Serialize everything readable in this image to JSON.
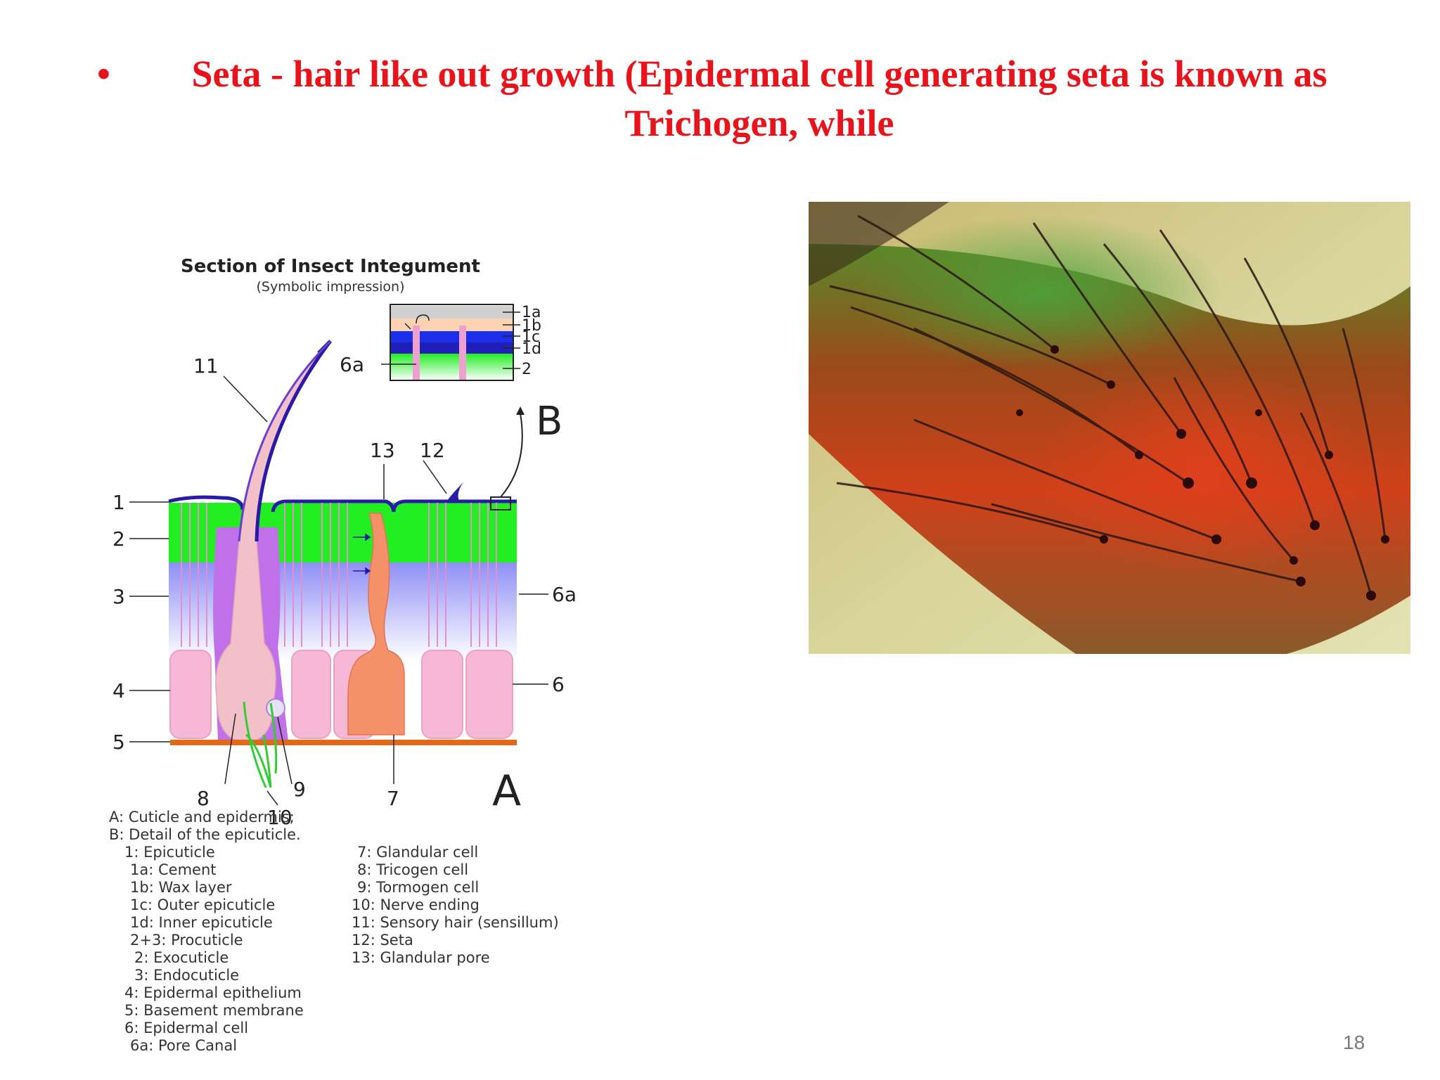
{
  "slide": {
    "bullet": "•",
    "title": "Seta - hair like out growth (Epidermal cell generating seta is known as Trichogen, while",
    "page_number": "18"
  },
  "diagram": {
    "title": "Section of Insect Integument",
    "subtitle": "(Symbolic impression)",
    "panel_a": "A",
    "panel_b": "B",
    "labels": {
      "l1": "1",
      "l2": "2",
      "l3": "3",
      "l4": "4",
      "l5": "5",
      "l6": "6",
      "l6a_right": "6a",
      "l6a_inset": "6a",
      "l7": "7",
      "l8": "8",
      "l9": "9",
      "l10": "10",
      "l11": "11",
      "l12": "12",
      "l13": "13",
      "i1a": "1a",
      "i1b": "1b",
      "i1c": "1c",
      "i1d": "1d",
      "i2": "2"
    },
    "colors": {
      "cuticle_edge": "#2a1aa8",
      "exocuticle": "#22ee22",
      "endocuticle": "#8888ff",
      "epidermal_cell": "#f6b8d6",
      "hair": "#f2c0c8",
      "tormogen": "#c070e8",
      "glandular": "#f4906a",
      "basement": "#e06a1a",
      "nerve": "#33cc33"
    },
    "legend_left": [
      "A: Cuticle and epidermis;",
      "B: Detail of the epicuticle.",
      "1: Epicuticle",
      "1a: Cement",
      "1b: Wax layer",
      "1c: Outer epicuticle",
      "1d: Inner epicuticle",
      "2+3: Procuticle",
      "2: Exocuticle",
      "3: Endocuticle",
      "4: Epidermal epithelium",
      "5: Basement membrane",
      "6: Epidermal cell",
      "6a: Pore Canal"
    ],
    "legend_right": [
      "7: Glandular cell",
      "8: Tricogen cell",
      "9: Tormogen cell",
      "10: Nerve ending",
      "11: Sensory hair (sensillum)",
      "12: Seta",
      "13: Glandular pore"
    ]
  }
}
